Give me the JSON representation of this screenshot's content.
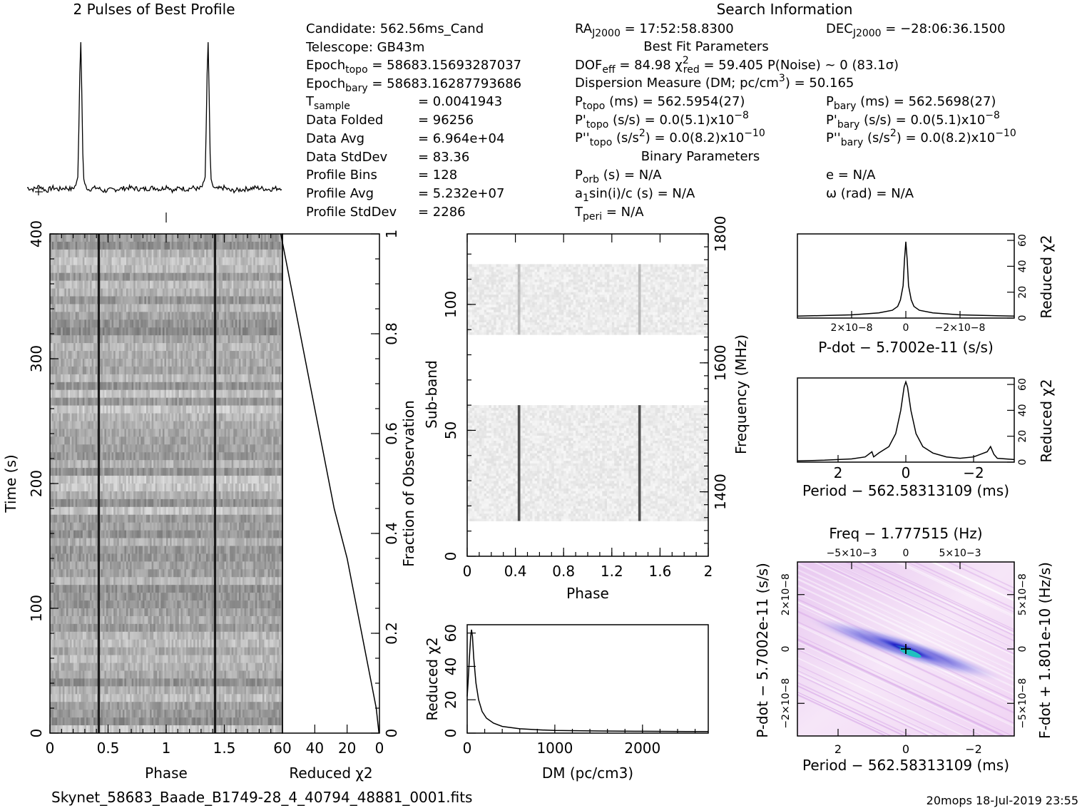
{
  "chart_data": [
    {
      "type": "line",
      "id": "profile",
      "title": "2 Pulses of Best Profile",
      "x": [
        0,
        0.05,
        0.1,
        0.15,
        0.2,
        0.25,
        0.3,
        0.35,
        0.38,
        0.4,
        0.41,
        0.42,
        0.43,
        0.44,
        0.45,
        0.48,
        0.55,
        0.6,
        0.7,
        0.8,
        0.9,
        1.0,
        1.05,
        1.1,
        1.15,
        1.2,
        1.25,
        1.3,
        1.35,
        1.38,
        1.4,
        1.41,
        1.42,
        1.43,
        1.44,
        1.45,
        1.48,
        1.55,
        1.6,
        1.7,
        1.8,
        1.9,
        2.0
      ],
      "values": [
        0.03,
        0.02,
        0.04,
        0.01,
        0.03,
        0.02,
        0.03,
        0.02,
        0.04,
        0.1,
        0.55,
        1.0,
        0.6,
        0.12,
        0.05,
        0.02,
        0.03,
        0.01,
        0.02,
        0.03,
        0.02,
        0.03,
        0.02,
        0.04,
        0.01,
        0.03,
        0.02,
        0.03,
        0.02,
        0.04,
        0.1,
        0.55,
        1.0,
        0.6,
        0.12,
        0.05,
        0.02,
        0.03,
        0.01,
        0.02,
        0.03,
        0.02,
        0.03
      ]
    },
    {
      "type": "heatmap",
      "id": "time-phase",
      "xlabel": "Phase",
      "ylabel": "Time (s)",
      "xlim": [
        0,
        2
      ],
      "ylim": [
        0,
        400
      ],
      "xticks": [
        "0",
        "0.5",
        "1",
        "1.5"
      ],
      "xtick_values": [
        0,
        0.5,
        1,
        1.5
      ],
      "yticks": [
        "0",
        "100",
        "200",
        "300",
        "400"
      ],
      "ytick_values": [
        0,
        100,
        200,
        300,
        400
      ],
      "pulse_phases": [
        0.42,
        1.42
      ]
    },
    {
      "type": "line",
      "id": "time-chi2",
      "xlabel": "Reduced χ2",
      "ylabel": "Fraction of Observation",
      "xlim": [
        60,
        0
      ],
      "ylim": [
        0,
        1
      ],
      "xticks": [
        "60",
        "40",
        "20",
        "0"
      ],
      "xtick_values": [
        60,
        40,
        20,
        0
      ],
      "yticks": [
        "0",
        "0.2",
        "0.4",
        "0.6",
        "0.8",
        "1"
      ],
      "ytick_values": [
        0,
        0.2,
        0.4,
        0.6,
        0.8,
        1
      ],
      "x": [
        0.3,
        2,
        5,
        8,
        11,
        14,
        17,
        20,
        24,
        28,
        31,
        34,
        37,
        40,
        43,
        46,
        49,
        52,
        55,
        58,
        61
      ],
      "y": [
        0,
        0.05,
        0.1,
        0.15,
        0.2,
        0.25,
        0.3,
        0.35,
        0.4,
        0.45,
        0.5,
        0.55,
        0.6,
        0.65,
        0.7,
        0.75,
        0.8,
        0.85,
        0.9,
        0.95,
        1.0
      ]
    },
    {
      "type": "heatmap",
      "id": "subband-phase",
      "xlabel": "Phase",
      "ylabel": "Sub-band",
      "ylabel_right": "Frequency (MHz)",
      "xlim": [
        0,
        2
      ],
      "ylim": [
        0,
        128
      ],
      "xticks": [
        "0",
        "0.4",
        "0.8",
        "1.2",
        "1.6",
        "2"
      ],
      "xtick_values": [
        0,
        0.4,
        0.8,
        1.2,
        1.6,
        2
      ],
      "yticks": [
        "0",
        "50",
        "100"
      ],
      "ytick_values": [
        0,
        50,
        100
      ],
      "right_ticks": [
        "1400",
        "1600",
        "1800"
      ],
      "right_tick_values": [
        1400,
        1600,
        1800
      ],
      "right_lim": [
        1300,
        1800
      ],
      "bands": [
        [
          14,
          60
        ],
        [
          88,
          116
        ]
      ],
      "pulse_phases": [
        0.43,
        1.43
      ]
    },
    {
      "type": "line",
      "id": "dm-chi2",
      "xlabel": "DM (pc/cm3)",
      "ylabel": "Reduced χ2",
      "xlim": [
        0,
        2750
      ],
      "ylim": [
        0,
        65
      ],
      "xticks": [
        "0",
        "1000",
        "2000"
      ],
      "xtick_values": [
        0,
        1000,
        2000
      ],
      "yticks": [
        "0",
        "20",
        "40",
        "60"
      ],
      "ytick_values": [
        0,
        20,
        40,
        60
      ],
      "x": [
        0,
        10,
        25,
        40,
        50,
        60,
        75,
        100,
        130,
        170,
        220,
        300,
        400,
        600,
        800,
        1000,
        1500,
        2000,
        2500,
        2750
      ],
      "values": [
        22,
        30,
        45,
        58,
        62,
        58,
        45,
        30,
        20,
        13,
        9,
        6,
        4,
        2.6,
        2.0,
        1.6,
        1.3,
        1.1,
        1.0,
        1.0
      ]
    },
    {
      "type": "line",
      "id": "pdot-chi2",
      "xlabel": "P-dot − 5.7002e-11 (s/s)",
      "ylabel": "Reduced χ2",
      "xlim": [
        4e-08,
        -4e-08
      ],
      "ylim": [
        0,
        65
      ],
      "xticks": [
        "2×10−8",
        "0",
        "−2×10−8"
      ],
      "xtick_values": [
        2e-08,
        0,
        -2e-08
      ],
      "yticks": [
        "0",
        "20",
        "40",
        "60"
      ],
      "ytick_values": [
        0,
        20,
        40,
        60
      ],
      "x": [
        4e-08,
        2e-08,
        1e-08,
        5e-09,
        3e-09,
        2e-09,
        1e-09,
        5e-10,
        0,
        -5e-10,
        -1e-09,
        -2e-09,
        -3e-09,
        -5e-09,
        -1e-08,
        -2e-08,
        -4e-08
      ],
      "values": [
        1.5,
        2.5,
        4,
        6,
        9,
        14,
        25,
        45,
        59,
        45,
        25,
        14,
        9,
        6,
        4,
        2.5,
        1.5
      ]
    },
    {
      "type": "line",
      "id": "period-chi2",
      "xlabel": "Period − 562.58313109 (ms)",
      "ylabel": "Reduced χ2",
      "xlim": [
        3.2,
        -3.2
      ],
      "ylim": [
        0,
        65
      ],
      "xticks": [
        "2",
        "0",
        "−2"
      ],
      "xtick_values": [
        2,
        0,
        -2
      ],
      "yticks": [
        "0",
        "20",
        "40",
        "60"
      ],
      "ytick_values": [
        0,
        20,
        40,
        60
      ],
      "x": [
        3.2,
        2.4,
        1.6,
        1.2,
        1.0,
        0.95,
        0.8,
        0.5,
        0.3,
        0.15,
        0.05,
        0,
        -0.05,
        -0.15,
        -0.3,
        -0.5,
        -0.8,
        -1.2,
        -1.6,
        -2.0,
        -2.4,
        -2.5,
        -2.6,
        -2.7,
        -3.2
      ],
      "values": [
        1,
        1.5,
        2.5,
        4,
        8,
        4,
        7,
        12,
        22,
        40,
        58,
        62,
        58,
        40,
        22,
        12,
        7,
        4,
        3,
        4,
        8,
        12,
        6,
        3,
        2
      ]
    },
    {
      "type": "heatmap",
      "id": "period-pdot",
      "title": "Freq − 1.777515 (Hz)",
      "xlabel": "Period − 562.58313109 (ms)",
      "ylabel": "P-dot − 5.7002e-11 (s/s)",
      "ylabel_right": "F-dot + 1.801e-10 (Hz/s)",
      "xlim": [
        3.2,
        -3.2
      ],
      "ylim": [
        3.2e-08,
        -3.2e-08
      ],
      "xticks": [
        "2",
        "0",
        "−2"
      ],
      "xtick_values": [
        2,
        0,
        -2
      ],
      "top_ticks": [
        "−5×10−3",
        "0",
        "5×10−3"
      ],
      "top_tick_values": [
        -0.005,
        0,
        0.005
      ],
      "yticks": [
        "−2×10−8",
        "0",
        "2×10−8"
      ],
      "ytick_values": [
        -2e-08,
        0,
        2e-08
      ],
      "right_ticks": [
        "5×10−8",
        "0",
        "−5×10−8"
      ],
      "right_tick_values": [
        5e-08,
        0,
        -5e-08
      ]
    }
  ],
  "info": {
    "header": "Search Information",
    "candidate": "Candidate:  562.56ms_Cand",
    "telescope": "Telescope:  GB43m",
    "epoch_topo": "Epoch",
    "epoch_topo_sub": "topo",
    "epoch_topo_val": " = 58683.15693287037",
    "epoch_bary": "Epoch",
    "epoch_bary_sub": "bary",
    "epoch_bary_val": " = 58683.16287793686",
    "tsample": "T",
    "tsample_sub": "sample",
    "tsample_val": "=  0.0041943",
    "data_folded": "Data Folded",
    "data_folded_val": "=  96256",
    "data_avg": "Data Avg",
    "data_avg_val": "=  6.964e+04",
    "data_stddev": "Data StdDev",
    "data_stddev_val": "=  83.36",
    "profile_bins": "Profile Bins",
    "profile_bins_val": "=  128",
    "profile_avg": "Profile Avg",
    "profile_avg_val": "=  5.232e+07",
    "profile_stddev": "Profile StdDev",
    "profile_stddev_val": "=  2286",
    "ra": "RA",
    "ra_sub": "J2000",
    "ra_val": " = 17:52:58.8300",
    "dec": "DEC",
    "dec_sub": "J2000",
    "dec_val": " = −28:06:36.1500",
    "best_fit": "Best Fit Parameters",
    "dof": "DOF",
    "dof_sub": "eff",
    "dof_val": " = 84.98  χ",
    "chi_sup": "2",
    "chi_sub": "red",
    "chi_val": " = 59.405  P(Noise) ~ 0   (83.1σ)",
    "dm_line": "Dispersion Measure (DM; pc/cm",
    "dm_sup": "3",
    "dm_val": ") = 50.165",
    "ptopo": "P",
    "ptopo_sub": "topo",
    "ptopo_val": " (ms) =  562.5954(27)",
    "pbary": "P",
    "pbary_sub": "bary",
    "pbary_val": " (ms) =  562.5698(27)",
    "pdtopo": "P'",
    "pdtopo_sub": "topo",
    "pdtopo_val": " (s/s) = 0.0(5.1)x10",
    "pdtopo_exp": "−8",
    "pdbary": "P'",
    "pdbary_sub": "bary",
    "pdbary_val": " (s/s) = 0.0(5.1)x10",
    "pdbary_exp": "−8",
    "pddtopo": "P''",
    "pddtopo_sub": "topo",
    "pddtopo_val": " (s/s",
    "pddtopo_sup": "2",
    "pddtopo_val2": ") = 0.0(8.2)x10",
    "pddtopo_exp": "−10",
    "pddbary": "P''",
    "pddbary_sub": "bary",
    "pddbary_val": " (s/s",
    "pddbary_sup": "2",
    "pddbary_val2": ") = 0.0(8.2)x10",
    "pddbary_exp": "−10",
    "binary": "Binary Parameters",
    "porb": "P",
    "porb_sub": "orb",
    "porb_val": " (s) = N/A",
    "ecc": "e = N/A",
    "a1": "a",
    "a1_sub": "1",
    "a1_val": "sin(i)/c (s) = N/A",
    "omega": "ω (rad) = N/A",
    "tperi": "T",
    "tperi_sub": "peri",
    "tperi_val": " = N/A"
  },
  "footer": {
    "filename": "Skynet_58683_Baade_B1749-28_4_40794_48881_0001.fits",
    "stamp": "20mops  18-Jul-2019 23:55"
  },
  "colors": {
    "heat_dark": "#000000",
    "cube_light": "#f4d8f4",
    "cube_blue": "#3a3ad8",
    "cube_cyan": "#20c0c0"
  }
}
